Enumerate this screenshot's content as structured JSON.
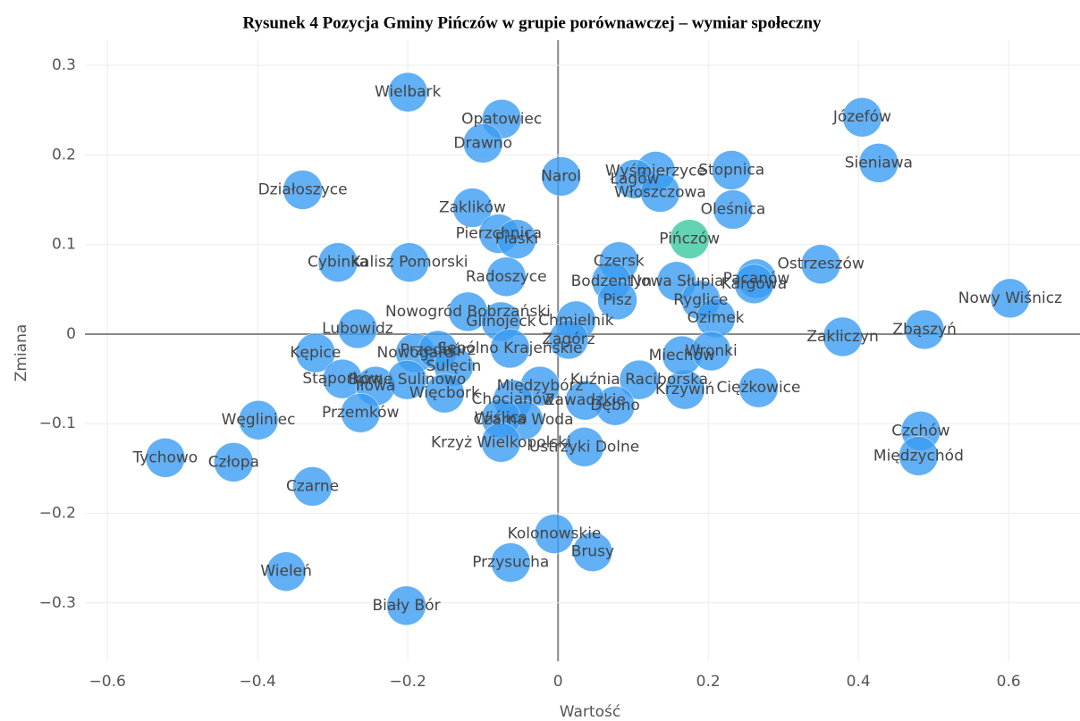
{
  "chart_data": {
    "type": "scatter",
    "title": "Rysunek 4 Pozycja Gminy Pińczów w grupie porównawczej – wymiar społeczny",
    "xlabel": "Wartość",
    "ylabel": "Zmiana",
    "labels": [
      "Wielbark",
      "Opatowiec",
      "Drawno",
      "Narol",
      "Wyśmierzyce",
      "Łagów",
      "Stopnica",
      "Włoszczowa",
      "Oleśnica",
      "Józefów",
      "Sieniawa",
      "Działoszyce",
      "Zaklików",
      "Pierzchnica",
      "Piaski",
      "Pińczów",
      "Kalisz Pomorski",
      "Cybinka",
      "Radoszyce",
      "Czersk",
      "Bodzentyn",
      "Nowa Słupia",
      "Pacanów",
      "Kargowa",
      "Ostrzeszów",
      "Nowy Wiśnicz",
      "Pisz",
      "Ryglice",
      "Ozimek",
      "Nowogród Bobrzański",
      "Glinojeck",
      "Chmielnik",
      "Lubowidz",
      "Zagórz",
      "Zakliczyn",
      "Zbąszyń",
      "Kępice",
      "Nowogard",
      "Przedbórz",
      "Sępólno Krajeńskie",
      "Sulęcin",
      "Stąporków",
      "Iłowa",
      "Borne Sulinowo",
      "Więcbork",
      "Międzybórz",
      "Chocianów",
      "Krzywiń",
      "Kuźnia Raciborska",
      "Miechów",
      "Wronki",
      "Ciężkowice",
      "Dębno",
      "Zawadzkie",
      "Czarna Woda",
      "Wiślica",
      "Krzyż Wielkopolski",
      "Ustrzyki Dolne",
      "Węgliniec",
      "Przemków",
      "Tychowo",
      "Człopa",
      "Czarne",
      "Czchów",
      "Międzychód",
      "Kolonowskie",
      "Brusy",
      "Przysucha",
      "Wieleń",
      "Biały Bór"
    ],
    "x": [
      -0.2,
      -0.075,
      -0.1,
      0.004,
      0.13,
      0.102,
      0.231,
      0.136,
      0.233,
      0.405,
      0.427,
      -0.34,
      -0.114,
      -0.079,
      -0.055,
      0.175,
      -0.198,
      -0.293,
      -0.069,
      0.081,
      0.071,
      0.158,
      0.264,
      0.261,
      0.35,
      0.602,
      0.079,
      0.19,
      0.21,
      -0.12,
      -0.076,
      0.024,
      -0.267,
      0.014,
      0.379,
      0.488,
      -0.323,
      -0.19,
      -0.16,
      -0.064,
      -0.139,
      -0.287,
      -0.243,
      -0.201,
      -0.151,
      -0.024,
      -0.06,
      0.169,
      0.108,
      0.165,
      0.204,
      0.267,
      0.076,
      0.036,
      -0.046,
      -0.076,
      -0.076,
      0.035,
      -0.399,
      -0.263,
      -0.523,
      -0.432,
      -0.327,
      0.483,
      0.48,
      -0.005,
      0.046,
      -0.063,
      -0.362,
      -0.202
    ],
    "values": [
      0.27,
      0.24,
      0.213,
      0.176,
      0.182,
      0.173,
      0.183,
      0.158,
      0.139,
      0.242,
      0.191,
      0.161,
      0.141,
      0.112,
      0.106,
      0.106,
      0.08,
      0.08,
      0.064,
      0.081,
      0.059,
      0.059,
      0.062,
      0.056,
      0.078,
      0.04,
      0.038,
      0.038,
      0.018,
      0.025,
      0.014,
      0.015,
      0.006,
      -0.006,
      -0.003,
      0.005,
      -0.021,
      -0.021,
      -0.018,
      -0.016,
      -0.036,
      -0.05,
      -0.058,
      -0.051,
      -0.066,
      -0.058,
      -0.073,
      -0.062,
      -0.051,
      -0.024,
      -0.019,
      -0.06,
      -0.08,
      -0.074,
      -0.096,
      -0.094,
      -0.121,
      -0.126,
      -0.096,
      -0.088,
      -0.138,
      -0.143,
      -0.17,
      -0.108,
      -0.136,
      -0.223,
      -0.243,
      -0.255,
      -0.265,
      -0.303
    ],
    "colors": [
      "#3b9cf3",
      "#3b9cf3",
      "#3b9cf3",
      "#3b9cf3",
      "#3b9cf3",
      "#3b9cf3",
      "#3b9cf3",
      "#3b9cf3",
      "#3b9cf3",
      "#3b9cf3",
      "#3b9cf3",
      "#3b9cf3",
      "#3b9cf3",
      "#3b9cf3",
      "#3b9cf3",
      "#3cc9a0",
      "#3b9cf3",
      "#3b9cf3",
      "#3b9cf3",
      "#3b9cf3",
      "#3b9cf3",
      "#3b9cf3",
      "#3b9cf3",
      "#3b9cf3",
      "#3b9cf3",
      "#3b9cf3",
      "#3b9cf3",
      "#3b9cf3",
      "#3b9cf3",
      "#3b9cf3",
      "#3b9cf3",
      "#3b9cf3",
      "#3b9cf3",
      "#3b9cf3",
      "#3b9cf3",
      "#3b9cf3",
      "#3b9cf3",
      "#3b9cf3",
      "#3b9cf3",
      "#3b9cf3",
      "#3b9cf3",
      "#3b9cf3",
      "#3b9cf3",
      "#3b9cf3",
      "#3b9cf3",
      "#3b9cf3",
      "#3b9cf3",
      "#3b9cf3",
      "#3b9cf3",
      "#3b9cf3",
      "#3b9cf3",
      "#3b9cf3",
      "#3b9cf3",
      "#3b9cf3",
      "#3b9cf3",
      "#3b9cf3",
      "#3b9cf3",
      "#3b9cf3",
      "#3b9cf3",
      "#3b9cf3",
      "#3b9cf3",
      "#3b9cf3",
      "#3b9cf3",
      "#3b9cf3",
      "#3b9cf3",
      "#3b9cf3",
      "#3b9cf3",
      "#3b9cf3",
      "#3b9cf3",
      "#3b9cf3"
    ],
    "xlim": [
      -0.63,
      0.695
    ],
    "xticks": [
      {
        "value": -0.6,
        "label": "−0.6"
      },
      {
        "value": -0.4,
        "label": "−0.4"
      },
      {
        "value": -0.2,
        "label": "−0.2"
      },
      0,
      0.2,
      0.4,
      0.6
    ],
    "ylim": [
      -0.365,
      0.328
    ],
    "yticks": [
      {
        "value": -0.3,
        "label": "−0.3"
      },
      {
        "value": -0.2,
        "label": "−0.2"
      },
      {
        "value": -0.1,
        "label": "−0.1"
      },
      0,
      0.1,
      0.2,
      0.3
    ],
    "grid": true
  }
}
